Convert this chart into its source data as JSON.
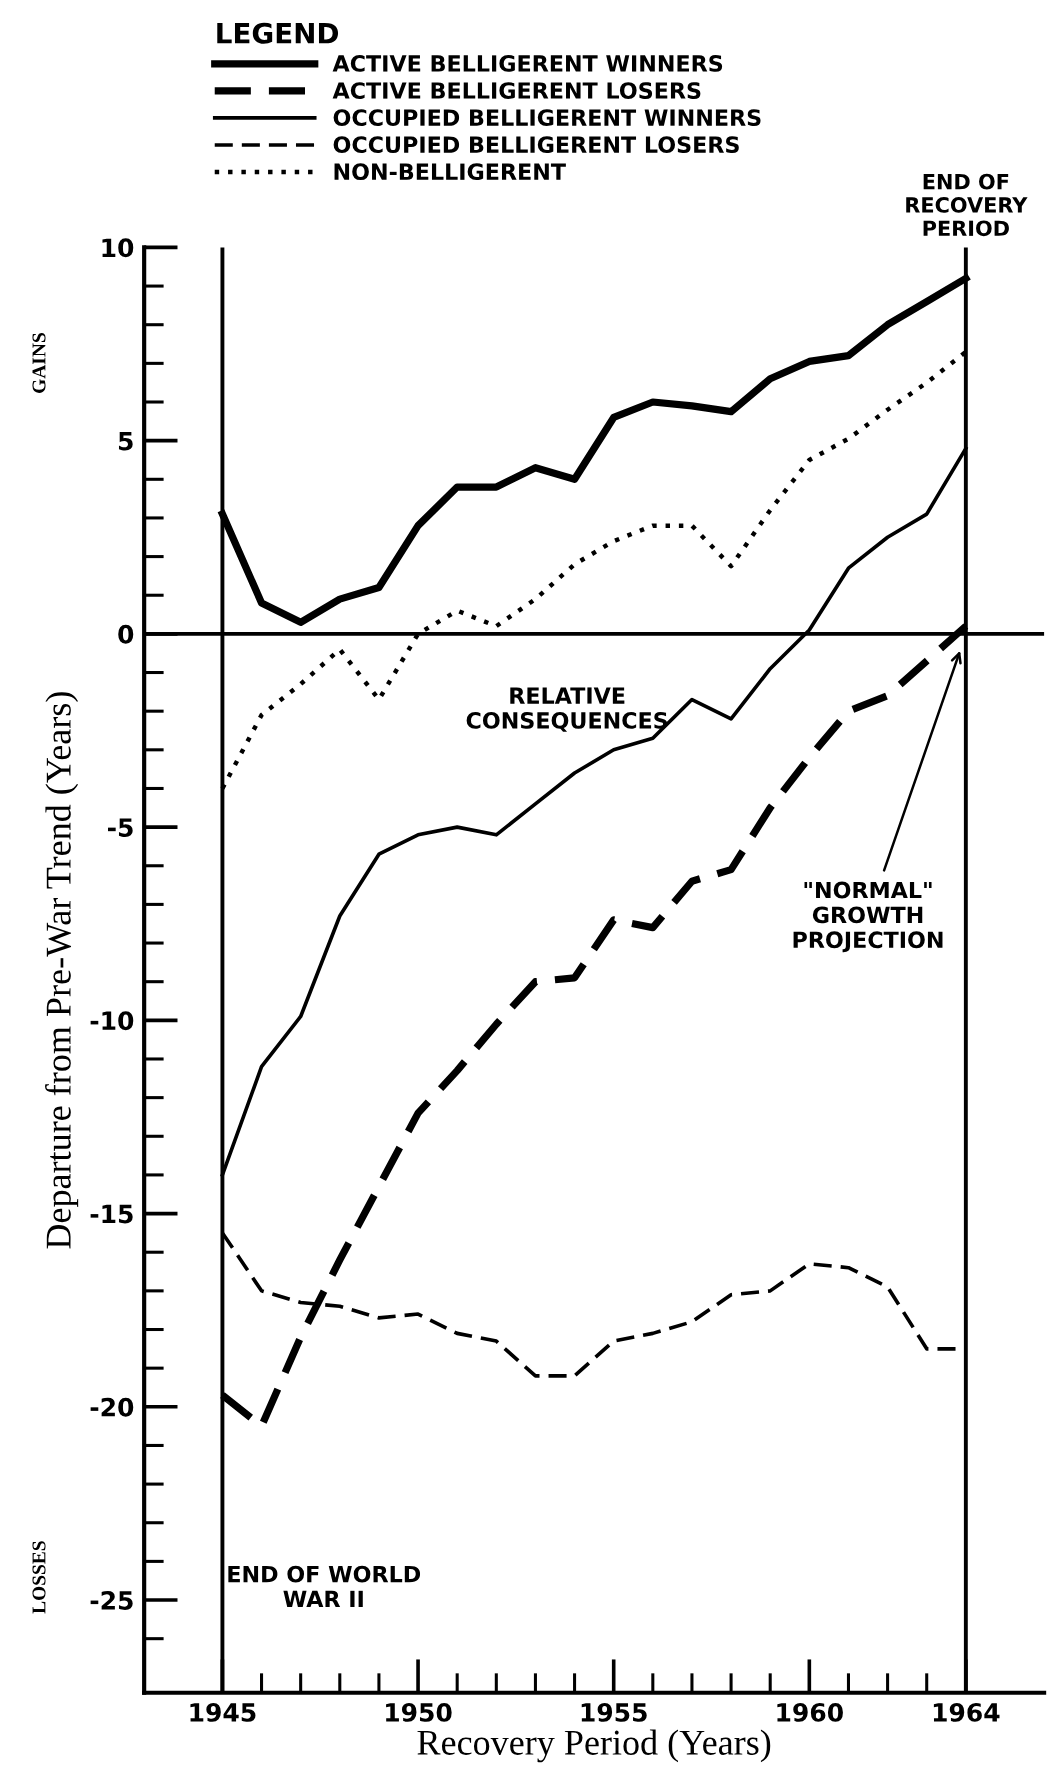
{
  "chart_data": {
    "type": "line",
    "xlabel": "Recovery Period (Years)",
    "ylabel": "Departure from Pre-War Trend (Years)",
    "legend_title": "LEGEND",
    "legend": "top",
    "grid": false,
    "marker": "none",
    "x": [
      1945,
      1946,
      1947,
      1948,
      1949,
      1950,
      1951,
      1952,
      1953,
      1954,
      1955,
      1956,
      1957,
      1958,
      1959,
      1960,
      1961,
      1962,
      1963,
      1964
    ],
    "xlim": [
      1943,
      1966
    ],
    "ylim": [
      -27.4,
      10
    ],
    "xticks": [
      1945,
      {
        "value": 1946,
        "label": null
      },
      {
        "value": 1947,
        "label": null
      },
      {
        "value": 1948,
        "label": null
      },
      {
        "value": 1949,
        "label": null
      },
      1950,
      {
        "value": 1951,
        "label": null
      },
      {
        "value": 1952,
        "label": null
      },
      {
        "value": 1953,
        "label": null
      },
      {
        "value": 1954,
        "label": null
      },
      1955,
      {
        "value": 1956,
        "label": null
      },
      {
        "value": 1957,
        "label": null
      },
      {
        "value": 1958,
        "label": null
      },
      {
        "value": 1959,
        "label": null
      },
      1960,
      {
        "value": 1961,
        "label": null
      },
      {
        "value": 1962,
        "label": null
      },
      {
        "value": 1963,
        "label": null
      },
      1964
    ],
    "yticks": [
      10,
      {
        "value": 9,
        "label": null
      },
      {
        "value": 8,
        "label": null
      },
      {
        "value": 7,
        "label": null
      },
      {
        "value": 6,
        "label": null
      },
      5,
      {
        "value": 4,
        "label": null
      },
      {
        "value": 3,
        "label": null
      },
      {
        "value": 2,
        "label": null
      },
      {
        "value": 1,
        "label": null
      },
      0,
      {
        "value": -1,
        "label": null
      },
      {
        "value": -2,
        "label": null
      },
      {
        "value": -3,
        "label": null
      },
      {
        "value": -4,
        "label": null
      },
      -5,
      {
        "value": -6,
        "label": null
      },
      {
        "value": -7,
        "label": null
      },
      {
        "value": -8,
        "label": null
      },
      {
        "value": -9,
        "label": null
      },
      -10,
      {
        "value": -11,
        "label": null
      },
      {
        "value": -12,
        "label": null
      },
      {
        "value": -13,
        "label": null
      },
      {
        "value": -14,
        "label": null
      },
      -15,
      {
        "value": -16,
        "label": null
      },
      {
        "value": -17,
        "label": null
      },
      {
        "value": -18,
        "label": null
      },
      {
        "value": -19,
        "label": null
      },
      -20,
      {
        "value": -21,
        "label": null
      },
      {
        "value": -22,
        "label": null
      },
      {
        "value": -23,
        "label": null
      },
      {
        "value": -24,
        "label": null
      },
      -25,
      {
        "value": -26,
        "label": null
      }
    ],
    "series": [
      {
        "name": "ACTIVE BELLIGERENT WINNERS",
        "color": "#000000",
        "line_style": "solid",
        "values": [
          3.1,
          0.8,
          0.3,
          0.9,
          1.2,
          2.8,
          3.8,
          3.8,
          4.3,
          4.0,
          5.6,
          6.0,
          5.9,
          5.75,
          6.6,
          7.05,
          7.2,
          8.0,
          8.6,
          9.2
        ]
      },
      {
        "name": "ACTIVE BELLIGERENT LOSERS",
        "color": "#000000",
        "line_style": "dashed",
        "values": [
          -19.7,
          -20.5,
          -18.2,
          -16.2,
          -14.3,
          -12.4,
          -11.3,
          -10.1,
          -9.0,
          -8.9,
          -7.4,
          -7.6,
          -6.4,
          -6.1,
          -4.5,
          -3.2,
          -2.0,
          -1.6,
          -0.7,
          0.2
        ]
      },
      {
        "name": "OCCUPIED BELLIGERENT WINNERS",
        "color": "#000000",
        "line_style": "solid",
        "values": [
          -14.0,
          -11.2,
          -9.9,
          -7.3,
          -5.7,
          -5.2,
          -5.0,
          -5.2,
          -4.4,
          -3.6,
          -3.0,
          -2.7,
          -1.7,
          -2.2,
          -0.9,
          0.1,
          1.7,
          2.5,
          3.1,
          4.8
        ]
      },
      {
        "name": "OCCUPIED BELLIGERENT LOSERS",
        "color": "#000000",
        "line_style": "dashed",
        "values": [
          -15.5,
          -17.0,
          -17.3,
          -17.4,
          -17.7,
          -17.6,
          -18.1,
          -18.3,
          -19.2,
          -19.2,
          -18.3,
          -18.1,
          -17.8,
          -17.1,
          -17.0,
          -16.3,
          -16.4,
          -16.9,
          -18.5,
          -18.5
        ]
      },
      {
        "name": "NON-BELLIGERENT",
        "color": "#000000",
        "line_style": "dotted",
        "values": [
          -4.0,
          -2.1,
          -1.3,
          -0.4,
          -1.7,
          0.0,
          0.6,
          0.2,
          0.9,
          1.8,
          2.4,
          2.8,
          2.8,
          1.75,
          3.2,
          4.5,
          5.05,
          5.8,
          6.5,
          7.3
        ]
      }
    ],
    "ref_lines": [
      {
        "axis": "x",
        "value": 1945,
        "label": "END OF WORLD\nWAR II",
        "color": "#000000"
      },
      {
        "axis": "x",
        "value": 1964,
        "label": "END OF\nRECOVERY\nPERIOD",
        "color": "#000000"
      },
      {
        "axis": "y",
        "value": 0,
        "label": null,
        "color": "#000000"
      }
    ],
    "annotations": [
      "GAINS",
      "LOSSES",
      "RELATIVE\nCONSEQUENCES",
      {
        "text": "\"NORMAL\"\nGROWTH\nPROJECTION",
        "x": 1963.9,
        "y": -0.3
      }
    ]
  }
}
